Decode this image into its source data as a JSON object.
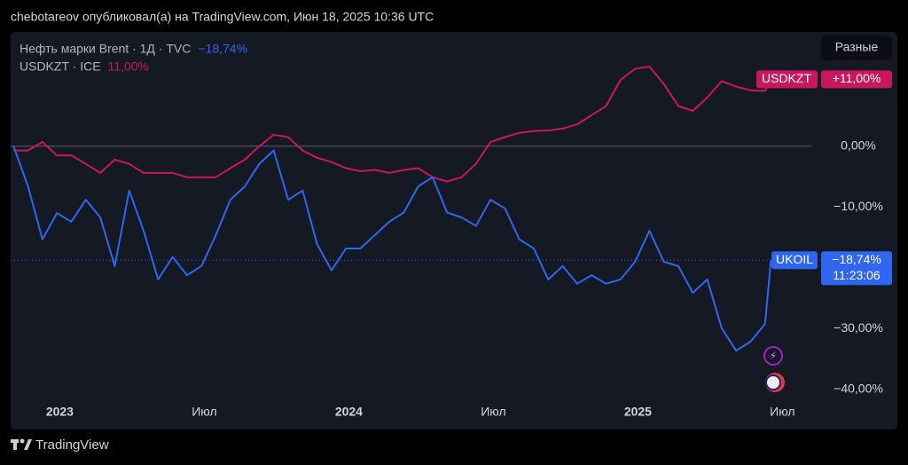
{
  "header": "chebotareov опубликовал(а) на TradingView.com, Июн 18, 2025 10:36 UTC",
  "button": "Разные",
  "footer": {
    "brand": "TradingView"
  },
  "chart_data": {
    "type": "line",
    "x": [
      2022.84,
      2022.89,
      2022.94,
      2022.99,
      2023.04,
      2023.09,
      2023.14,
      2023.19,
      2023.24,
      2023.29,
      2023.34,
      2023.39,
      2023.44,
      2023.49,
      2023.54,
      2023.59,
      2023.64,
      2023.69,
      2023.74,
      2023.79,
      2023.84,
      2023.89,
      2023.94,
      2023.99,
      2024.04,
      2024.09,
      2024.14,
      2024.19,
      2024.24,
      2024.29,
      2024.34,
      2024.39,
      2024.44,
      2024.49,
      2024.54,
      2024.59,
      2024.64,
      2024.69,
      2024.74,
      2024.79,
      2024.84,
      2024.89,
      2024.94,
      2024.99,
      2025.04,
      2025.09,
      2025.14,
      2025.19,
      2025.24,
      2025.29,
      2025.34,
      2025.39,
      2025.44,
      2025.46
    ],
    "series": [
      {
        "name": "Нефть марки Brent · 1Д · TVC",
        "change_label": "−18,74%",
        "tag": "UKOIL",
        "time_label": "11:23:06",
        "color": "#2f66f0",
        "values": [
          0,
          -6.6,
          -15.3,
          -11,
          -12.4,
          -8.8,
          -11.7,
          -19.7,
          -7.3,
          -13.9,
          -21.9,
          -18.2,
          -21.2,
          -19.7,
          -14.6,
          -8.8,
          -6.6,
          -2.9,
          -0.7,
          -8.8,
          -7.3,
          -16.1,
          -20.4,
          -16.8,
          -16.8,
          -14.6,
          -12.4,
          -10.9,
          -6.6,
          -5.1,
          -10.9,
          -11.7,
          -13.1,
          -8.8,
          -10.2,
          -15.3,
          -16.8,
          -21.9,
          -19.7,
          -22.6,
          -21.2,
          -22.6,
          -21.9,
          -19,
          -13.9,
          -19,
          -19.7,
          -24.1,
          -21.9,
          -29.9,
          -33.6,
          -32.1,
          -29.2,
          -18.74
        ]
      },
      {
        "name": "USDKZT · ICE",
        "change_label": "11,00%",
        "tag": "USDKZT",
        "tag_value": "+11,00%",
        "color": "#c8175f",
        "values": [
          -0.7,
          -0.7,
          0.7,
          -1.5,
          -1.5,
          -2.9,
          -4.4,
          -2.2,
          -2.9,
          -4.4,
          -4.4,
          -4.4,
          -5.1,
          -5.1,
          -5.1,
          -3.6,
          -2.2,
          0,
          1.9,
          1.5,
          -0.7,
          -1.9,
          -2.6,
          -3.6,
          -4.1,
          -3.9,
          -4.4,
          -3.9,
          -3.6,
          -5.1,
          -5.8,
          -5.1,
          -2.9,
          0.7,
          1.5,
          2.2,
          2.5,
          2.6,
          2.9,
          3.6,
          5.1,
          6.6,
          10.9,
          12.7,
          13.1,
          10.2,
          6.6,
          5.8,
          8.0,
          10.7,
          9.8,
          9.2,
          9.1,
          11.0
        ]
      }
    ],
    "xlim": [
      2022.83,
      2025.6
    ],
    "xticks": [
      {
        "value": 2023,
        "label": "2023"
      },
      {
        "value": 2023.5,
        "label": "Июл"
      },
      {
        "value": 2024,
        "label": "2024"
      },
      {
        "value": 2024.5,
        "label": "Июл"
      },
      {
        "value": 2025,
        "label": "2025"
      },
      {
        "value": 2025.5,
        "label": "Июл"
      }
    ],
    "ylim": [
      -41.6,
      18.2
    ],
    "yticks": [
      {
        "value": 0,
        "label": "0,00%"
      },
      {
        "value": -10,
        "label": "−10,00%"
      },
      {
        "value": -30,
        "label": "−30,00%"
      },
      {
        "value": -40,
        "label": "−40,00%"
      }
    ],
    "baseline": 0
  }
}
